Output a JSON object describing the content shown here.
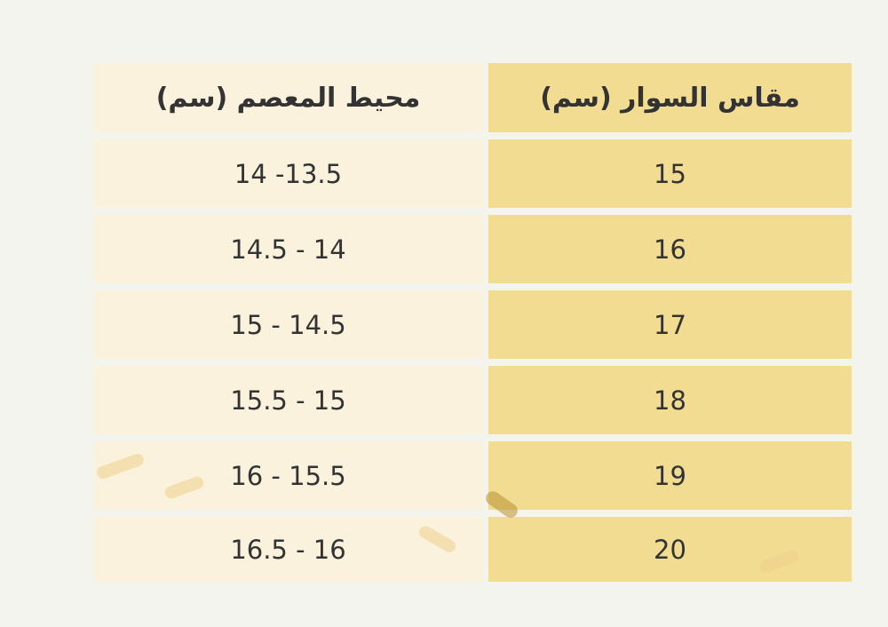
{
  "table": {
    "headers": [
      "محيط المعصم (سم)",
      "مقاس السوار (سم)"
    ],
    "rows": [
      {
        "wrist": "14 -13.5",
        "size": "15"
      },
      {
        "wrist": "14.5 - 14",
        "size": "16"
      },
      {
        "wrist": "15 - 14.5",
        "size": "17"
      },
      {
        "wrist": "15.5 - 15",
        "size": "18"
      },
      {
        "wrist": "16 - 15.5",
        "size": "19"
      },
      {
        "wrist": "16.5 - 16",
        "size": "20"
      }
    ]
  },
  "colors": {
    "header": "#f2db90",
    "size_column": "#f2dc92",
    "wrist_column": "#faf2dc",
    "text": "#333333"
  }
}
